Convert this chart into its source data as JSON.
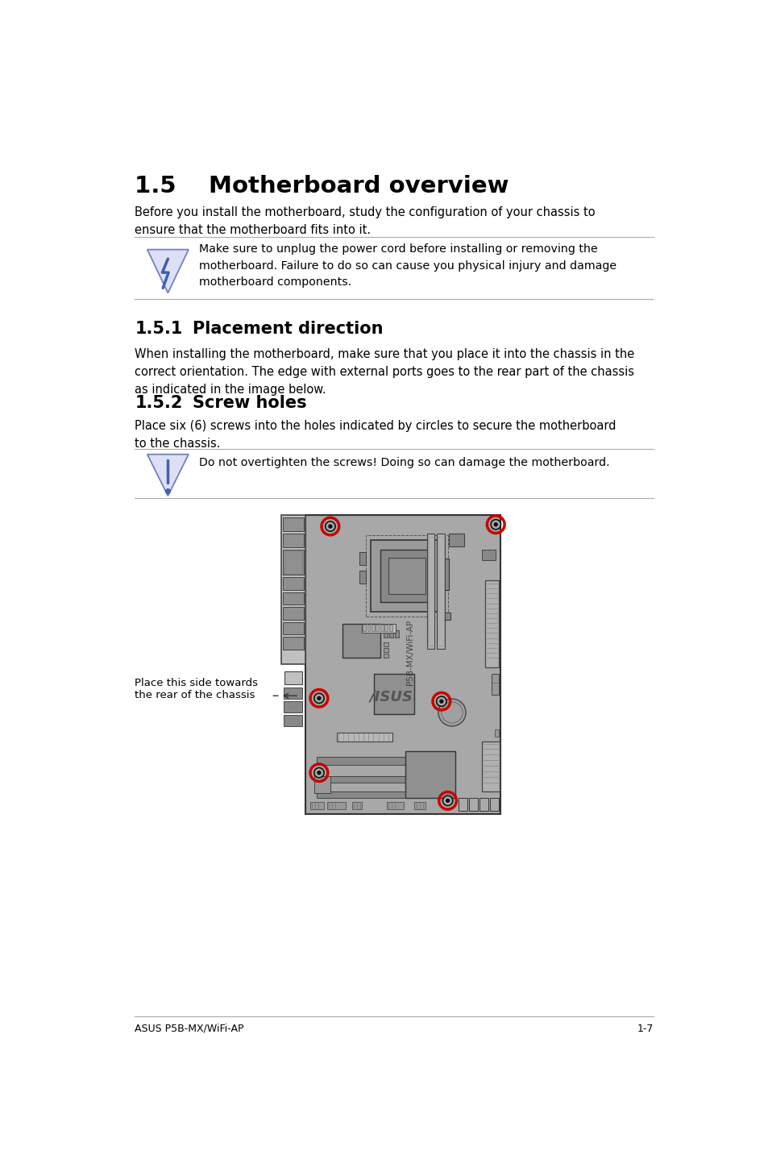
{
  "title": "1.5    Motherboard overview",
  "section1_num": "1.5.1",
  "section1_title": "Placement direction",
  "section2_num": "1.5.2",
  "section2_title": "Screw holes",
  "intro_text": "Before you install the motherboard, study the configuration of your chassis to\nensure that the motherboard fits into it.",
  "warning1_text": "Make sure to unplug the power cord before installing or removing the\nmotherboard. Failure to do so can cause you physical injury and damage\nmotherboard components.",
  "placement_text": "When installing the motherboard, make sure that you place it into the chassis in the\ncorrect orientation. The edge with external ports goes to the rear part of the chassis\nas indicated in the image below.",
  "screw_intro": "Place six (6) screws into the holes indicated by circles to secure the motherboard\nto the chassis.",
  "warning2_text": "Do not overtighten the screws! Doing so can damage the motherboard.",
  "label_text": "Place this side towards\nthe rear of the chassis",
  "footer_left": "ASUS P5B-MX/WiFi-AP",
  "footer_right": "1-7",
  "bg_color": "#ffffff",
  "text_color": "#000000",
  "board_color": "#a8a8a8",
  "board_dark": "#707070",
  "board_light": "#c0c0c0",
  "screw_color": "#cc0000",
  "icon_fill": "#dde0f5",
  "icon_edge": "#7080c0",
  "icon_sym": "#4060b0"
}
